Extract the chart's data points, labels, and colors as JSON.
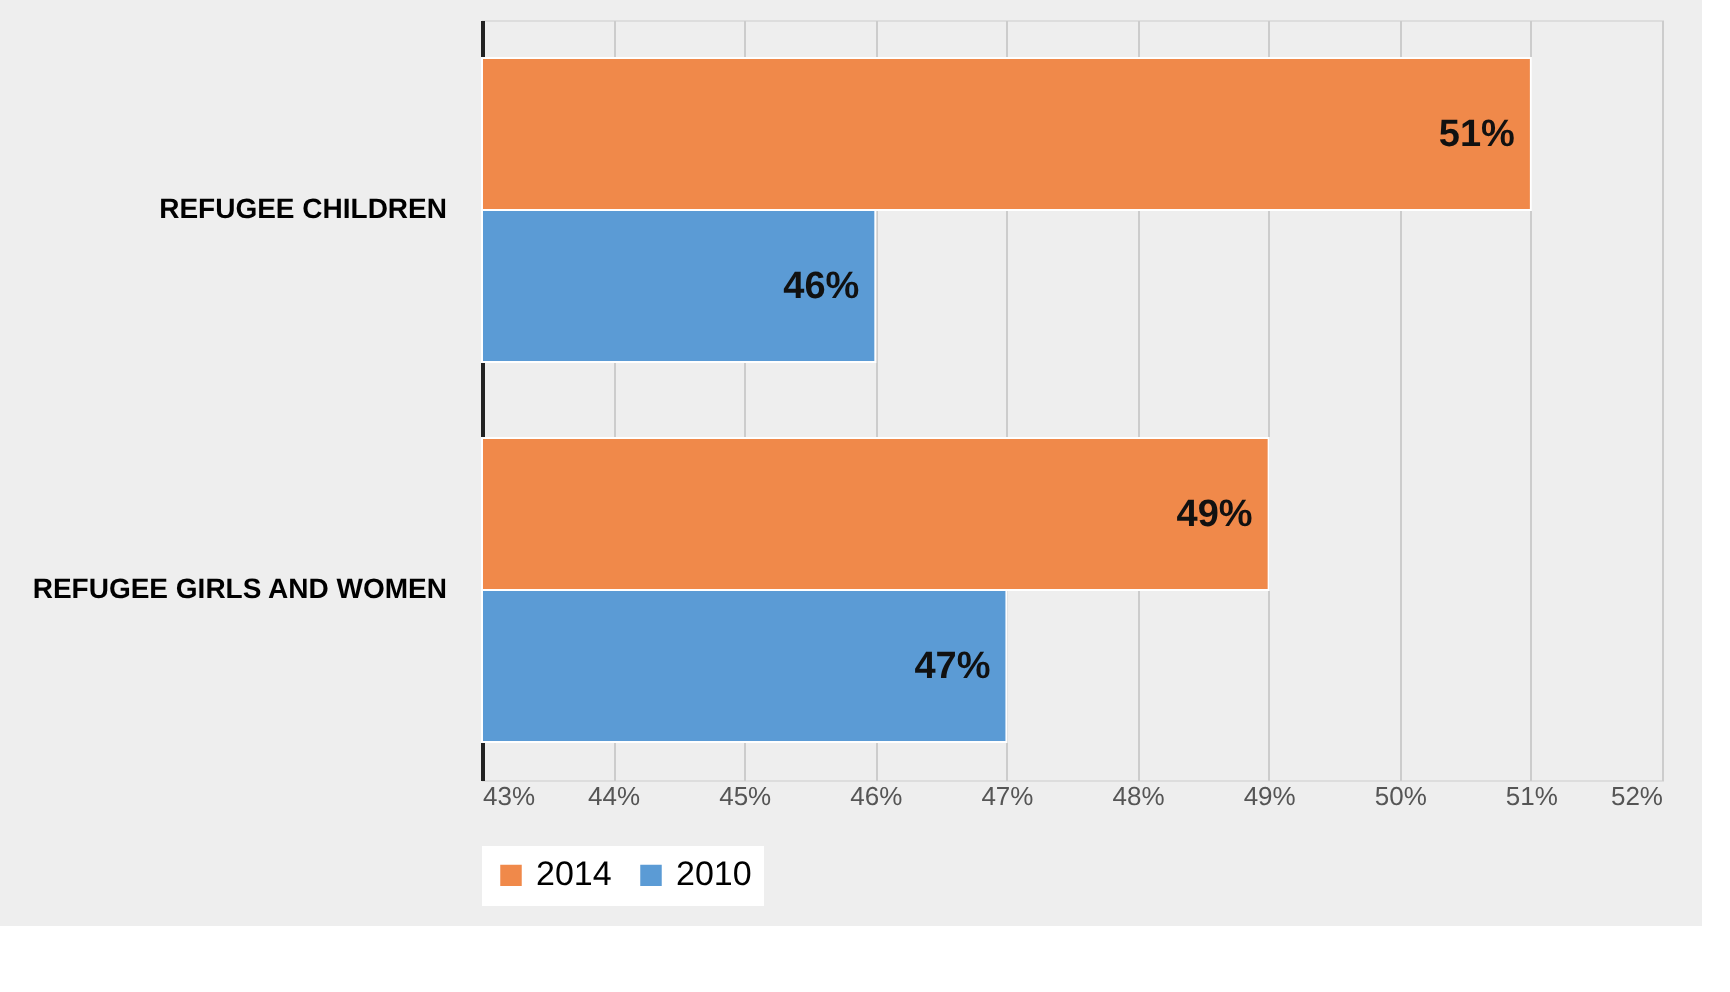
{
  "chart_data": {
    "type": "bar",
    "orientation": "horizontal",
    "categories": [
      "REFUGEE CHILDREN",
      "REFUGEE GIRLS AND WOMEN"
    ],
    "series": [
      {
        "name": "2014",
        "color": "#f0894a",
        "values": [
          51,
          49
        ],
        "value_labels": [
          "51%",
          "49%"
        ]
      },
      {
        "name": "2010",
        "color": "#5b9bd5",
        "values": [
          46,
          47
        ],
        "value_labels": [
          "46%",
          "47%"
        ]
      }
    ],
    "xlim": [
      43,
      52
    ],
    "xticks": [
      {
        "value": 43,
        "label": "43%"
      },
      {
        "value": 44,
        "label": "44%"
      },
      {
        "value": 45,
        "label": "45%"
      },
      {
        "value": 46,
        "label": "46%"
      },
      {
        "value": 47,
        "label": "47%"
      },
      {
        "value": 48,
        "label": "48%"
      },
      {
        "value": 49,
        "label": "49%"
      },
      {
        "value": 50,
        "label": "50%"
      },
      {
        "value": 51,
        "label": "51%"
      },
      {
        "value": 52,
        "label": "52%"
      }
    ],
    "grid": "x",
    "legend": "bottom"
  }
}
